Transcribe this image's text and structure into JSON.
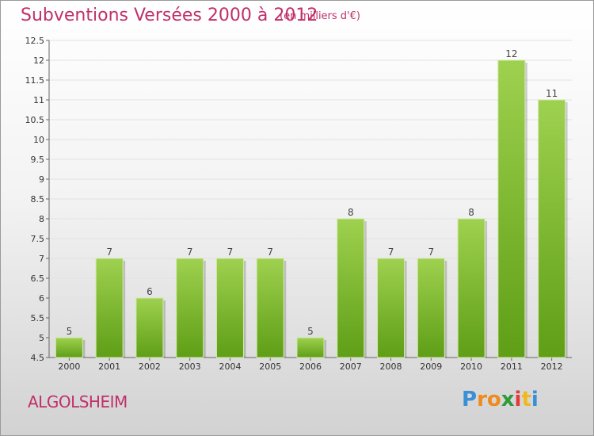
{
  "title": "Subventions Versées 2000 à 2012",
  "subtitle": "(en milliers d'€)",
  "commune": "ALGOLSHEIM",
  "logo": {
    "letters": [
      "P",
      "r",
      "o",
      "x",
      "i",
      "t",
      "i"
    ],
    "colors": [
      "#3a8fd6",
      "#f08a1c",
      "#f08a1c",
      "#2f9a3b",
      "#e23a3a",
      "#f0b81c",
      "#3a8fd6"
    ]
  },
  "colors": {
    "bar_top": "#9ed14f",
    "bar_bottom": "#5f9e16",
    "title": "#c0306a"
  },
  "chart_data": {
    "type": "bar",
    "categories": [
      "2000",
      "2001",
      "2002",
      "2003",
      "2004",
      "2005",
      "2006",
      "2007",
      "2008",
      "2009",
      "2010",
      "2011",
      "2012"
    ],
    "values": [
      5,
      7,
      6,
      7,
      7,
      7,
      5,
      8,
      7,
      7,
      8,
      12,
      11
    ],
    "ylim": [
      4.5,
      12.5
    ],
    "yticks": [
      4.5,
      5,
      5.5,
      6,
      6.5,
      7,
      7.5,
      8,
      8.5,
      9,
      9.5,
      10,
      10.5,
      11,
      11.5,
      12,
      12.5
    ],
    "ytick_labels": [
      "4.5",
      "5",
      "5.5",
      "6",
      "6.5",
      "7",
      "7.5",
      "8",
      "8.5",
      "9",
      "9.5",
      "10",
      "10.5",
      "11",
      "11.5",
      "12",
      "12.5"
    ],
    "grid": true
  }
}
